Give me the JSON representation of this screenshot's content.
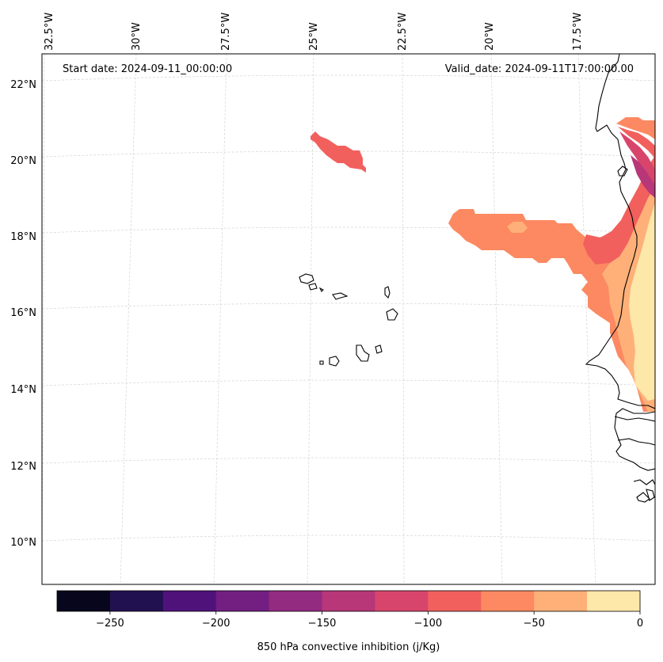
{
  "header": {
    "start_date": "Start date: 2024-09-11_00:00:00",
    "valid_date": "Valid_date: 2024-09-11T17:00:00.00"
  },
  "longitude_labels": [
    "32.5°W",
    "30°W",
    "27.5°W",
    "25°W",
    "22.5°W",
    "20°W",
    "17.5°W"
  ],
  "latitude_labels": [
    "22°N",
    "20°N",
    "18°N",
    "16°N",
    "14°N",
    "12°N",
    "10°N"
  ],
  "colorbar": {
    "label": "850 hPa convective inhibition (j/Kg)",
    "ticks": [
      "−250",
      "−200",
      "−150",
      "−100",
      "−50",
      "0"
    ],
    "tick_values": [
      -250,
      -200,
      -150,
      -100,
      -50,
      0
    ],
    "range": [
      -275,
      0
    ],
    "levels": [
      -275,
      -250,
      -225,
      -200,
      -175,
      -150,
      -125,
      -100,
      -75,
      -50,
      -25,
      0
    ],
    "colors": [
      "#07061c",
      "#221150",
      "#4f127b",
      "#721f81",
      "#932b80",
      "#b73779",
      "#d8456c",
      "#f1605d",
      "#fc8961",
      "#feb078",
      "#fde7a9"
    ]
  },
  "map_colors": {
    "land_edge": "#000000",
    "grid": "#cccccc"
  }
}
